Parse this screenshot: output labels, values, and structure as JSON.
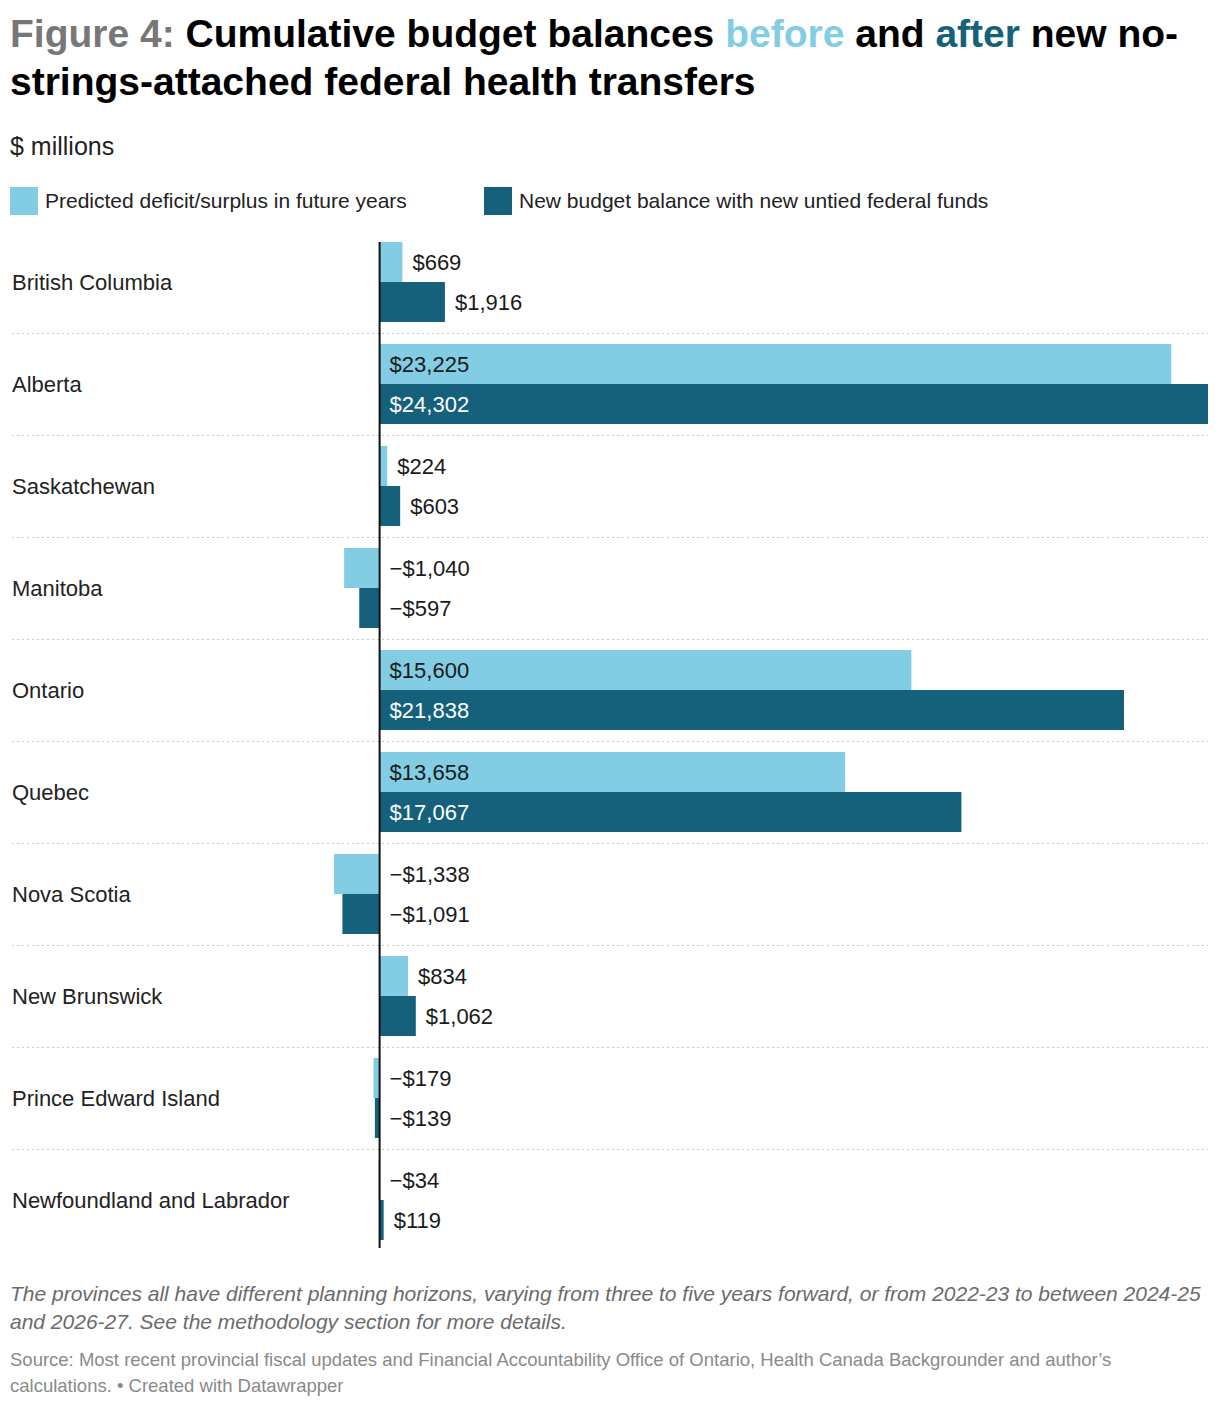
{
  "chart_data": {
    "type": "bar",
    "orientation": "horizontal",
    "title": [
      {
        "text": "Figure 4:",
        "color": "#777777"
      },
      {
        "text": " Cumulative budget balances ",
        "color": "#000000"
      },
      {
        "text": "before",
        "color": "#82cde3"
      },
      {
        "text": " and ",
        "color": "#000000"
      },
      {
        "text": "after",
        "color": "#15607a"
      },
      {
        "text": " new no-strings-attached federal health transfers",
        "color": "#000000"
      }
    ],
    "subtitle": "$ millions",
    "notes": "The provinces all have different planning horizons, varying from three to five years forward, or from 2022-23 to between 2024-25 and 2026-27. See the methodology section for more details.",
    "source": "Source: Most recent provincial fiscal updates and Financial Accountability Office of Ontario, Health Canada Backgrounder and author’s calculations. • Created with Datawrapper",
    "categories": [
      "British Columbia",
      "Alberta",
      "Saskatchewan",
      "Manitoba",
      "Ontario",
      "Quebec",
      "Nova Scotia",
      "New Brunswick",
      "Prince Edward Island",
      "Newfoundland and Labrador"
    ],
    "series": [
      {
        "name": "Predicted deficit/surplus in future years",
        "color": "#82cde3",
        "values": [
          669,
          23225,
          224,
          -1040,
          15600,
          13658,
          -1338,
          834,
          -179,
          -34
        ],
        "value_labels": [
          "$669",
          "$23,225",
          "$224",
          "−$1,040",
          "$15,600",
          "$13,658",
          "−$1,338",
          "$834",
          "−$179",
          "−$34"
        ]
      },
      {
        "name": "New budget balance with new untied federal funds",
        "color": "#15607a",
        "values": [
          1916,
          24302,
          603,
          -597,
          21838,
          17067,
          -1091,
          1062,
          -139,
          119
        ],
        "value_labels": [
          "$1,916",
          "$24,302",
          "$603",
          "−$597",
          "$21,838",
          "$17,067",
          "−$1,091",
          "$1,062",
          "−$139",
          "$119"
        ]
      }
    ],
    "xlim": [
      -1338,
      24302
    ],
    "tick_labels": false,
    "grid": false,
    "data_labels": true,
    "legend": "top"
  }
}
